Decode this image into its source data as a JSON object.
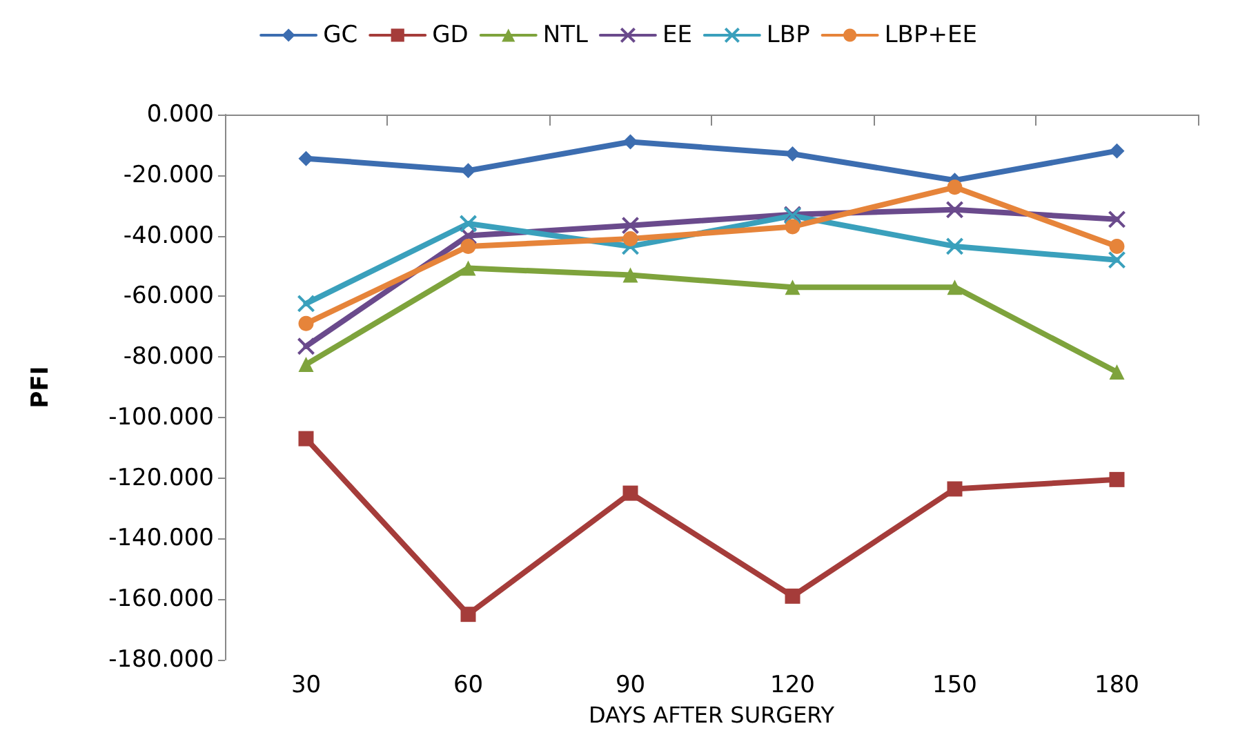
{
  "chart_data": {
    "type": "line",
    "ylabel": "PFI",
    "xlabel": "DAYS AFTER SURGERY",
    "categories": [
      "30",
      "60",
      "90",
      "120",
      "150",
      "180"
    ],
    "series": [
      {
        "name": "GC",
        "color": "#3c6db0",
        "marker": "diamond",
        "values": [
          -14.5,
          -18.5,
          -9,
          -13,
          -21.7,
          -12
        ]
      },
      {
        "name": "GD",
        "color": "#a53c3a",
        "marker": "square",
        "values": [
          -107,
          -165,
          -125,
          -159,
          -123.6,
          -120.5
        ]
      },
      {
        "name": "NTL",
        "color": "#7ea33c",
        "marker": "triangle",
        "values": [
          -82.5,
          -50.7,
          -53,
          -57,
          -57,
          -85
        ]
      },
      {
        "name": "EE",
        "color": "#6a4a8c",
        "marker": "cross",
        "values": [
          -76.5,
          -40,
          -36.6,
          -33,
          -31.4,
          -34.6
        ]
      },
      {
        "name": "LBP",
        "color": "#3aa0bc",
        "marker": "cross",
        "values": [
          -62.4,
          -36,
          -43.5,
          -33.4,
          -43.5,
          -48
        ]
      },
      {
        "name": "LBP+EE",
        "color": "#e6843a",
        "marker": "circle",
        "values": [
          -69,
          -43.5,
          -41,
          -37,
          -24,
          -43.5
        ]
      }
    ],
    "ylim": [
      -180,
      0
    ],
    "yticks": [
      {
        "value": -180,
        "label": "-180.000"
      },
      {
        "value": -160,
        "label": "-160.000"
      },
      {
        "value": -140,
        "label": "-140.000"
      },
      {
        "value": -120,
        "label": "-120.000"
      },
      {
        "value": -100,
        "label": "-100.000"
      },
      {
        "value": -80,
        "label": "-80.000"
      },
      {
        "value": -60,
        "label": "-60.000"
      },
      {
        "value": -40,
        "label": "-40.000"
      },
      {
        "value": -20,
        "label": "-20.000"
      },
      {
        "value": 0,
        "label": "0.000"
      }
    ],
    "grid": false,
    "legend": "top",
    "line_style": "solid"
  }
}
